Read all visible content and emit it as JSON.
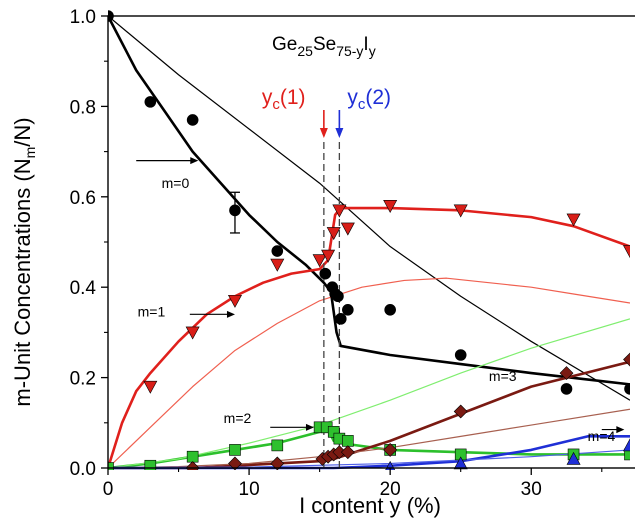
{
  "chart_data": {
    "type": "scatter",
    "title": "",
    "xlabel": "I content y (%)",
    "ylabel_main": "m-Unit Concentrations (N",
    "ylabel_sub": "m",
    "ylabel_tail": "/N)",
    "xlim": [
      0,
      37
    ],
    "ylim": [
      0,
      1.0
    ],
    "x_ticks": [
      0,
      10,
      20,
      30
    ],
    "x_tick_labels": [
      "0",
      "10",
      "20",
      "30"
    ],
    "y_ticks": [
      0,
      0.2,
      0.4,
      0.6,
      0.8,
      1.0
    ],
    "y_tick_labels": [
      "0.0",
      "0.2",
      "0.4",
      "0.6",
      "0.8",
      "1.0"
    ],
    "formula": {
      "p1": "Ge",
      "s1": "25",
      "p2": "Se",
      "s2": "75-y",
      "p3": "I",
      "s3": "y"
    },
    "thresholds": [
      {
        "label_main": "y",
        "label_sub": "c",
        "label_tail": "(1)",
        "x": 15.3,
        "color": "#e0201c"
      },
      {
        "label_main": "y",
        "label_sub": "c",
        "label_tail": "(2)",
        "x": 16.4,
        "color": "#1f2fd6"
      }
    ],
    "series_labels": [
      {
        "text": "m=0",
        "x": 3.8,
        "y": 0.62
      },
      {
        "text": "m=1",
        "x": 2.1,
        "y": 0.335
      },
      {
        "text": "m=2",
        "x": 8.2,
        "y": 0.1
      },
      {
        "text": "m=3",
        "x": 27.0,
        "y": 0.192
      },
      {
        "text": "m=4",
        "x": 34.0,
        "y": 0.06
      }
    ],
    "series": [
      {
        "marker": "circle",
        "color": "#000000",
        "points": [
          [
            0,
            1.0
          ],
          [
            3,
            0.81
          ],
          [
            6,
            0.77
          ],
          [
            9,
            0.57
          ],
          [
            12,
            0.48
          ],
          [
            15.4,
            0.43
          ],
          [
            15.9,
            0.4
          ],
          [
            16.1,
            0.385
          ],
          [
            16.3,
            0.38
          ],
          [
            16.5,
            0.33
          ],
          [
            17,
            0.35
          ],
          [
            20,
            0.35
          ],
          [
            25,
            0.25
          ],
          [
            32.5,
            0.175
          ],
          [
            37,
            0.175
          ]
        ]
      },
      {
        "marker": "triangle-down",
        "color": "#d81e18",
        "points": [
          [
            3,
            0.18
          ],
          [
            6,
            0.3
          ],
          [
            9,
            0.37
          ],
          [
            12,
            0.45
          ],
          [
            15,
            0.46
          ],
          [
            15.6,
            0.47
          ],
          [
            16,
            0.52
          ],
          [
            16.4,
            0.57
          ],
          [
            17,
            0.53
          ],
          [
            20,
            0.58
          ],
          [
            25,
            0.57
          ],
          [
            33,
            0.55
          ],
          [
            37,
            0.48
          ]
        ]
      },
      {
        "marker": "square",
        "color": "#2ec02e",
        "points": [
          [
            0,
            0
          ],
          [
            3,
            0.005
          ],
          [
            6,
            0.025
          ],
          [
            9,
            0.04
          ],
          [
            12,
            0.05
          ],
          [
            15,
            0.09
          ],
          [
            15.5,
            0.09
          ],
          [
            16,
            0.08
          ],
          [
            16.4,
            0.065
          ],
          [
            17,
            0.06
          ],
          [
            20,
            0.04
          ],
          [
            25,
            0.03
          ],
          [
            33,
            0.03
          ],
          [
            37,
            0.03
          ]
        ]
      },
      {
        "marker": "diamond",
        "color": "#7a1a12",
        "points": [
          [
            6,
            0.0
          ],
          [
            9,
            0.01
          ],
          [
            12,
            0.01
          ],
          [
            15.2,
            0.02
          ],
          [
            15.6,
            0.025
          ],
          [
            16,
            0.03
          ],
          [
            16.4,
            0.035
          ],
          [
            17,
            0.035
          ],
          [
            20,
            0.04
          ],
          [
            25,
            0.125
          ],
          [
            32.5,
            0.21
          ],
          [
            37,
            0.24
          ]
        ]
      },
      {
        "marker": "triangle-up",
        "color": "#1f2fd6",
        "points": [
          [
            20,
            0.0
          ],
          [
            25,
            0.01
          ],
          [
            33,
            0.02
          ],
          [
            37,
            0.05
          ]
        ]
      }
    ],
    "curves": [
      {
        "color": "#000000",
        "width": 2.6,
        "points": [
          [
            0,
            1.0
          ],
          [
            2,
            0.88
          ],
          [
            4,
            0.79
          ],
          [
            6,
            0.7
          ],
          [
            8,
            0.63
          ],
          [
            10,
            0.56
          ],
          [
            12,
            0.5
          ],
          [
            14,
            0.45
          ],
          [
            15.3,
            0.41
          ],
          [
            15.8,
            0.39
          ],
          [
            16.2,
            0.3
          ],
          [
            16.5,
            0.27
          ],
          [
            20,
            0.25
          ],
          [
            25,
            0.23
          ],
          [
            30,
            0.21
          ],
          [
            37,
            0.185
          ]
        ]
      },
      {
        "color": "#000000",
        "width": 1.2,
        "points": [
          [
            0,
            1.0
          ],
          [
            5,
            0.87
          ],
          [
            10,
            0.75
          ],
          [
            15,
            0.63
          ],
          [
            20,
            0.49
          ],
          [
            25,
            0.38
          ],
          [
            30,
            0.28
          ],
          [
            37,
            0.15
          ]
        ]
      },
      {
        "color": "#e0201c",
        "width": 2.6,
        "points": [
          [
            0,
            0
          ],
          [
            1,
            0.1
          ],
          [
            2,
            0.17
          ],
          [
            3,
            0.21
          ],
          [
            5,
            0.28
          ],
          [
            7,
            0.34
          ],
          [
            9,
            0.38
          ],
          [
            11,
            0.41
          ],
          [
            13,
            0.43
          ],
          [
            15,
            0.44
          ],
          [
            15.6,
            0.46
          ],
          [
            16.1,
            0.56
          ],
          [
            16.5,
            0.575
          ],
          [
            20,
            0.575
          ],
          [
            25,
            0.57
          ],
          [
            30,
            0.555
          ],
          [
            33,
            0.535
          ],
          [
            37,
            0.49
          ]
        ]
      },
      {
        "color": "#f06050",
        "width": 1.2,
        "points": [
          [
            0,
            0
          ],
          [
            3,
            0.09
          ],
          [
            6,
            0.18
          ],
          [
            9,
            0.26
          ],
          [
            12,
            0.32
          ],
          [
            15,
            0.37
          ],
          [
            18,
            0.4
          ],
          [
            21,
            0.415
          ],
          [
            24,
            0.42
          ],
          [
            27,
            0.41
          ],
          [
            30,
            0.4
          ],
          [
            33,
            0.385
          ],
          [
            37,
            0.365
          ]
        ]
      },
      {
        "color": "#2cc02c",
        "width": 2.6,
        "points": [
          [
            0,
            0
          ],
          [
            3,
            0.01
          ],
          [
            6,
            0.025
          ],
          [
            9,
            0.04
          ],
          [
            12,
            0.055
          ],
          [
            15,
            0.08
          ],
          [
            15.6,
            0.085
          ],
          [
            16,
            0.06
          ],
          [
            16.5,
            0.055
          ],
          [
            20,
            0.04
          ],
          [
            25,
            0.035
          ],
          [
            30,
            0.03
          ],
          [
            37,
            0.03
          ]
        ]
      },
      {
        "color": "#80ee70",
        "width": 1.2,
        "points": [
          [
            0,
            0
          ],
          [
            5,
            0.02
          ],
          [
            10,
            0.055
          ],
          [
            15,
            0.095
          ],
          [
            20,
            0.15
          ],
          [
            25,
            0.21
          ],
          [
            30,
            0.265
          ],
          [
            37,
            0.33
          ]
        ]
      },
      {
        "color": "#7a1a12",
        "width": 2.6,
        "points": [
          [
            0,
            0
          ],
          [
            6,
            0.0
          ],
          [
            9,
            0.005
          ],
          [
            12,
            0.01
          ],
          [
            15,
            0.015
          ],
          [
            16,
            0.02
          ],
          [
            18,
            0.04
          ],
          [
            20,
            0.06
          ],
          [
            25,
            0.12
          ],
          [
            30,
            0.18
          ],
          [
            37,
            0.235
          ]
        ]
      },
      {
        "color": "#a86050",
        "width": 1.2,
        "points": [
          [
            0,
            0
          ],
          [
            5,
            0.003
          ],
          [
            10,
            0.01
          ],
          [
            15,
            0.025
          ],
          [
            20,
            0.045
          ],
          [
            25,
            0.07
          ],
          [
            30,
            0.095
          ],
          [
            37,
            0.13
          ]
        ]
      },
      {
        "color": "#1f2fd6",
        "width": 2.6,
        "points": [
          [
            0,
            0
          ],
          [
            16,
            0.0
          ],
          [
            20,
            0.005
          ],
          [
            25,
            0.015
          ],
          [
            30,
            0.04
          ],
          [
            34,
            0.07
          ],
          [
            37,
            0.07
          ]
        ]
      },
      {
        "color": "#5060e8",
        "width": 1.2,
        "points": [
          [
            0,
            0
          ],
          [
            10,
            0.002
          ],
          [
            20,
            0.01
          ],
          [
            30,
            0.025
          ],
          [
            37,
            0.04
          ]
        ]
      }
    ],
    "error_bar": {
      "x": 9,
      "y": 0.57,
      "low": 0.52,
      "high": 0.61
    },
    "arrows": [
      {
        "from": [
          2.0,
          0.68
        ],
        "to": [
          6.4,
          0.68
        ]
      },
      {
        "from": [
          5.8,
          0.34
        ],
        "to": [
          9.0,
          0.34
        ]
      },
      {
        "from": [
          11.5,
          0.09
        ],
        "to": [
          14.6,
          0.09
        ]
      },
      {
        "from": [
          35.0,
          0.085
        ],
        "to": [
          36.6,
          0.085
        ]
      }
    ]
  }
}
